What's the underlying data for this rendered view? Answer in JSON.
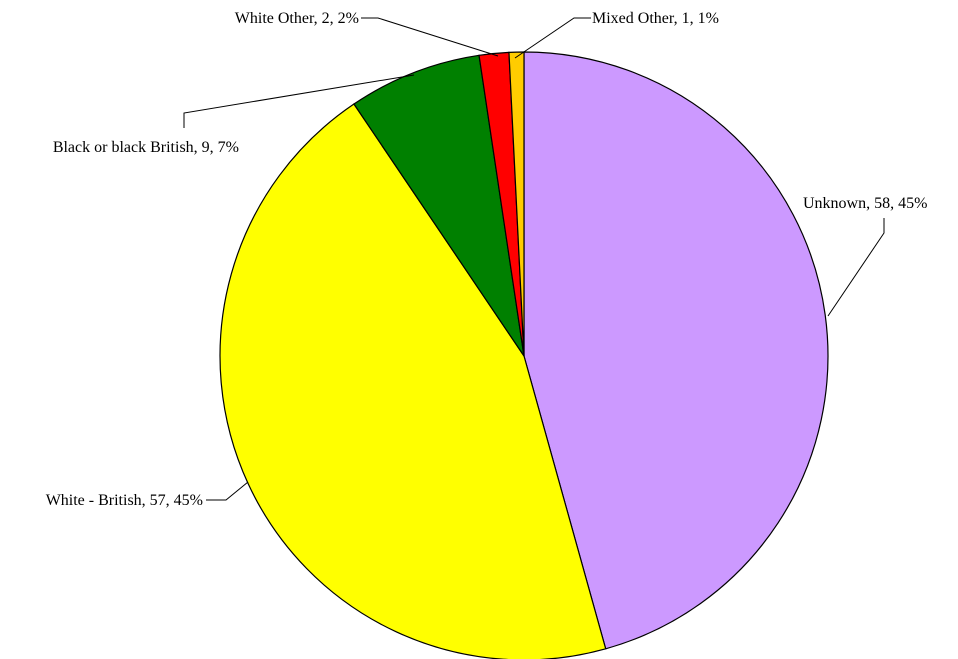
{
  "chart_data": {
    "type": "pie",
    "title": "",
    "legend": "none",
    "slices": [
      {
        "name": "Unknown",
        "value": 58,
        "percent": 45,
        "label": "Unknown, 58, 45%",
        "color": "#cc99ff"
      },
      {
        "name": "White - British",
        "value": 57,
        "percent": 45,
        "label": "White - British, 57, 45%",
        "color": "#ffff00"
      },
      {
        "name": "Black or black British",
        "value": 9,
        "percent": 7,
        "label": "Black or black British, 9, 7%",
        "color": "#008000"
      },
      {
        "name": "White Other",
        "value": 2,
        "percent": 2,
        "label": "White Other, 2, 2%",
        "color": "#ff0000"
      },
      {
        "name": "Mixed Other",
        "value": 1,
        "percent": 1,
        "label": "Mixed Other, 1, 1%",
        "color": "#ffcc00"
      }
    ]
  }
}
